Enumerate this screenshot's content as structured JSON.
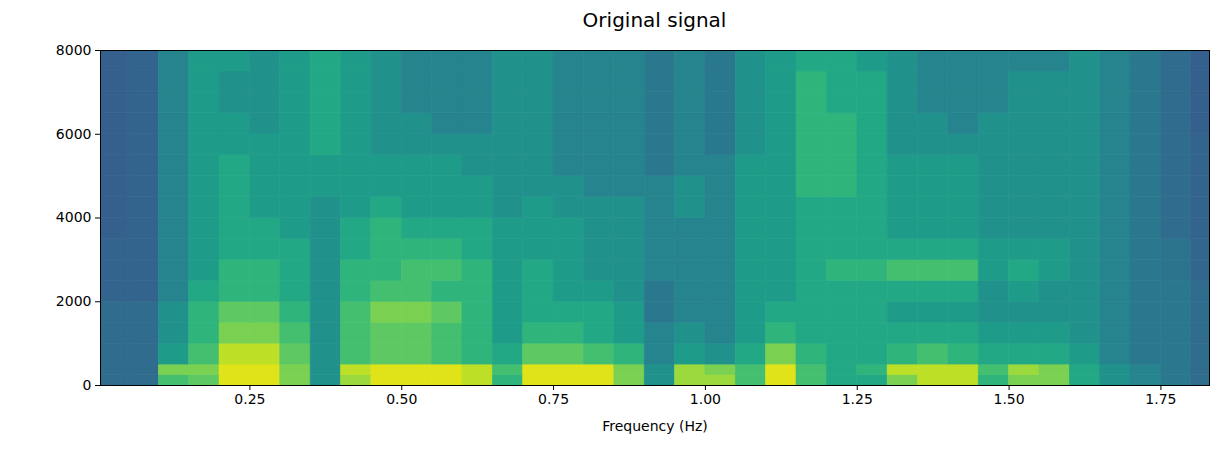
{
  "chart_data": {
    "type": "spectrogram",
    "title": "Original signal",
    "x_label": "Frequency (Hz)",
    "xlim": [
      0.004,
      1.83
    ],
    "xticks": [
      0.25,
      {
        "value": 0.5,
        "label": "0.50"
      },
      0.75,
      {
        "value": 1,
        "label": "1.00"
      },
      1.25,
      {
        "value": 1.5,
        "label": "1.50"
      },
      1.75
    ],
    "ylim": [
      0,
      8000
    ],
    "yticks": [
      0,
      2000,
      4000,
      6000,
      8000
    ],
    "color": "viridis",
    "zlim": [
      0,
      10
    ],
    "x_bins": [
      0.004,
      0.05,
      0.1,
      0.15,
      0.2,
      0.25,
      0.3,
      0.35,
      0.4,
      0.45,
      0.5,
      0.55,
      0.6,
      0.65,
      0.7,
      0.75,
      0.8,
      0.85,
      0.9,
      0.95,
      1.0,
      1.05,
      1.1,
      1.15,
      1.2,
      1.25,
      1.3,
      1.35,
      1.4,
      1.45,
      1.5,
      1.55,
      1.6,
      1.65,
      1.7,
      1.75,
      1.8,
      1.83
    ],
    "y_bins": [
      0,
      250,
      500,
      1000,
      1500,
      2000,
      2500,
      3000,
      3500,
      4000,
      4500,
      5000,
      5500,
      6000,
      6500,
      7000,
      7500,
      8000
    ],
    "cells": [
      [
        3.5,
        3.5,
        7,
        7.5,
        9.5,
        9.5,
        8,
        5,
        8.5,
        9.5,
        9.5,
        9.5,
        9,
        6.5,
        9.5,
        9.5,
        9.5,
        8,
        5,
        8.5,
        8.5,
        7,
        9.5,
        7,
        6,
        6,
        8,
        9,
        9,
        6.5,
        8,
        8,
        6,
        5,
        4.5,
        4,
        3.5
      ],
      [
        3.5,
        3.5,
        8,
        8,
        9.5,
        9.5,
        8,
        5,
        9,
        9.5,
        9.5,
        9.5,
        9,
        7,
        9.5,
        9.5,
        9.5,
        8,
        5,
        8.5,
        8,
        7,
        9.5,
        7,
        6,
        6.5,
        9,
        9,
        9,
        7,
        8.5,
        8,
        6,
        5,
        4.5,
        4,
        3.5
      ],
      [
        3.5,
        3.5,
        5.5,
        7,
        9,
        9,
        7.5,
        5,
        7,
        7.5,
        7.5,
        7,
        6.5,
        6,
        7.5,
        7.5,
        7,
        6.5,
        4.5,
        5.5,
        5,
        6,
        8,
        6.5,
        6,
        6,
        6.5,
        7,
        6.5,
        6,
        6,
        6,
        5.5,
        4.5,
        4,
        4,
        3.5
      ],
      [
        3.5,
        3.5,
        5,
        6.5,
        8,
        8,
        7,
        5,
        7,
        7.5,
        7.5,
        7,
        6.5,
        5.5,
        6.5,
        6.5,
        6,
        5.5,
        4.5,
        5,
        4.5,
        5.5,
        6.5,
        6,
        6,
        6,
        6,
        6,
        6,
        5.5,
        5.5,
        5.5,
        5,
        4.5,
        4,
        4,
        3.5
      ],
      [
        3.5,
        3.5,
        5,
        6.5,
        7.5,
        7.5,
        6.5,
        5,
        7,
        8,
        8,
        7.5,
        6.5,
        5.5,
        6,
        6,
        6,
        5.5,
        4,
        4.5,
        4.5,
        5.5,
        6,
        6,
        6,
        6,
        5.5,
        5.5,
        5.5,
        5,
        5,
        5,
        5,
        4.5,
        4,
        4,
        3.5
      ],
      [
        3.2,
        3.2,
        4.5,
        6,
        6.5,
        6.5,
        6,
        5,
        6.5,
        7,
        7,
        6.5,
        6.5,
        5.5,
        6,
        5.5,
        5.5,
        5,
        4,
        4.5,
        4.5,
        5.5,
        5.5,
        6,
        6,
        6,
        6,
        6,
        6,
        5,
        5.5,
        5,
        5,
        4.5,
        4,
        4,
        3.5
      ],
      [
        3.2,
        3.2,
        4.5,
        5.5,
        6.5,
        6.5,
        6,
        5,
        6.5,
        6.5,
        7,
        7,
        6.5,
        5.5,
        6,
        5.5,
        5,
        5,
        4.5,
        4.5,
        4.5,
        5.5,
        5.5,
        6,
        6.5,
        6.5,
        7,
        7,
        7,
        5.5,
        6,
        5.5,
        5,
        4.5,
        4,
        3.8,
        3.3
      ],
      [
        3.2,
        3.2,
        4.5,
        5.5,
        6,
        6,
        6,
        5,
        6,
        6.5,
        6.5,
        6.5,
        6,
        5.5,
        5.5,
        5.5,
        5,
        5,
        4.5,
        4.5,
        4.5,
        5.5,
        5.5,
        6,
        6,
        6,
        6,
        6,
        6,
        5.5,
        5.5,
        5.5,
        5,
        4.5,
        4,
        3.8,
        3.3
      ],
      [
        3,
        3.2,
        4.5,
        5.5,
        6,
        6,
        5.5,
        5,
        6,
        6.5,
        6,
        6,
        6,
        5.5,
        5.5,
        5.5,
        5,
        5,
        4.5,
        4.5,
        4.5,
        5.5,
        5.5,
        6,
        6,
        6,
        5.5,
        5.5,
        5.5,
        5,
        5,
        5,
        5,
        4.5,
        4,
        3.5,
        3.2
      ],
      [
        3,
        3.2,
        4.5,
        5.5,
        6,
        5.5,
        5.5,
        5,
        5.5,
        6,
        5.5,
        5.5,
        5.5,
        5,
        5.5,
        5,
        5,
        5,
        4.5,
        5,
        4.5,
        5.5,
        5.5,
        6,
        6,
        6,
        5.5,
        5.5,
        5.5,
        5,
        5,
        5,
        5,
        4.5,
        4,
        3.5,
        3.2
      ],
      [
        3,
        3.2,
        4.5,
        5.5,
        6,
        5.5,
        5.5,
        5.5,
        5.5,
        5.5,
        5.5,
        5.5,
        5.5,
        5,
        5,
        5,
        4.5,
        4.5,
        4.5,
        5,
        4.5,
        5.5,
        5.5,
        6.5,
        6.5,
        6,
        5.5,
        5.5,
        5.5,
        5,
        5,
        5,
        5,
        4.5,
        4,
        3.5,
        3.2
      ],
      [
        3,
        3.2,
        4.5,
        5.5,
        6,
        5.5,
        5.5,
        5.5,
        5.5,
        5.5,
        5.5,
        5.5,
        5,
        5,
        5,
        4.5,
        4.5,
        4.5,
        4,
        4.5,
        4.5,
        5.5,
        5.5,
        6.5,
        6.5,
        6,
        5.5,
        5.5,
        5.5,
        5,
        5,
        5,
        5,
        4.5,
        4,
        3.5,
        3.2
      ],
      [
        3,
        3.2,
        4.5,
        5.5,
        5.5,
        5.5,
        5.5,
        6,
        5.5,
        5,
        5,
        5,
        5,
        5,
        5,
        4.5,
        4.5,
        4.5,
        4,
        4.5,
        4,
        5,
        5.5,
        6.5,
        6.5,
        6,
        5,
        5,
        5,
        5,
        5,
        5,
        5,
        4.5,
        4,
        3.5,
        3.2
      ],
      [
        3,
        3.2,
        4.5,
        5.5,
        5.5,
        5,
        5.5,
        6,
        5.5,
        5,
        5,
        4.5,
        4.5,
        5,
        5,
        4.5,
        4.5,
        4.5,
        4,
        4.5,
        4,
        5,
        5.5,
        6.5,
        6.5,
        6,
        5,
        5,
        4.5,
        5,
        5,
        5,
        5,
        4.5,
        4,
        3.5,
        3
      ],
      [
        3,
        3.2,
        4.5,
        5.5,
        5,
        5,
        5.5,
        6,
        5.5,
        5,
        4.5,
        4.5,
        4.5,
        5,
        5,
        4.5,
        4.5,
        4.5,
        4,
        4.5,
        4,
        5,
        5.5,
        6.5,
        6,
        6,
        5,
        4.5,
        4.5,
        4.5,
        5,
        5,
        5,
        4.5,
        4,
        3.5,
        3
      ],
      [
        3,
        3.2,
        4.5,
        5.5,
        5,
        5,
        5.5,
        6,
        5.5,
        5,
        4.5,
        4.5,
        4.5,
        5,
        5,
        4.5,
        4.5,
        4.5,
        4,
        4.5,
        4,
        5,
        5.5,
        6.5,
        6,
        6,
        5,
        4.5,
        4.5,
        4.5,
        5,
        5,
        5,
        4.5,
        4,
        3.5,
        3
      ],
      [
        3,
        3.2,
        4.5,
        5.5,
        5.5,
        5,
        5.5,
        6,
        5.5,
        5,
        4.5,
        4.5,
        4.5,
        5,
        5,
        4.5,
        4.5,
        4.5,
        4,
        4.5,
        4,
        5,
        5.5,
        6,
        6,
        5.5,
        5,
        4.5,
        4.5,
        4.5,
        4.5,
        4.5,
        5,
        4.5,
        4,
        3.5,
        3
      ]
    ]
  }
}
